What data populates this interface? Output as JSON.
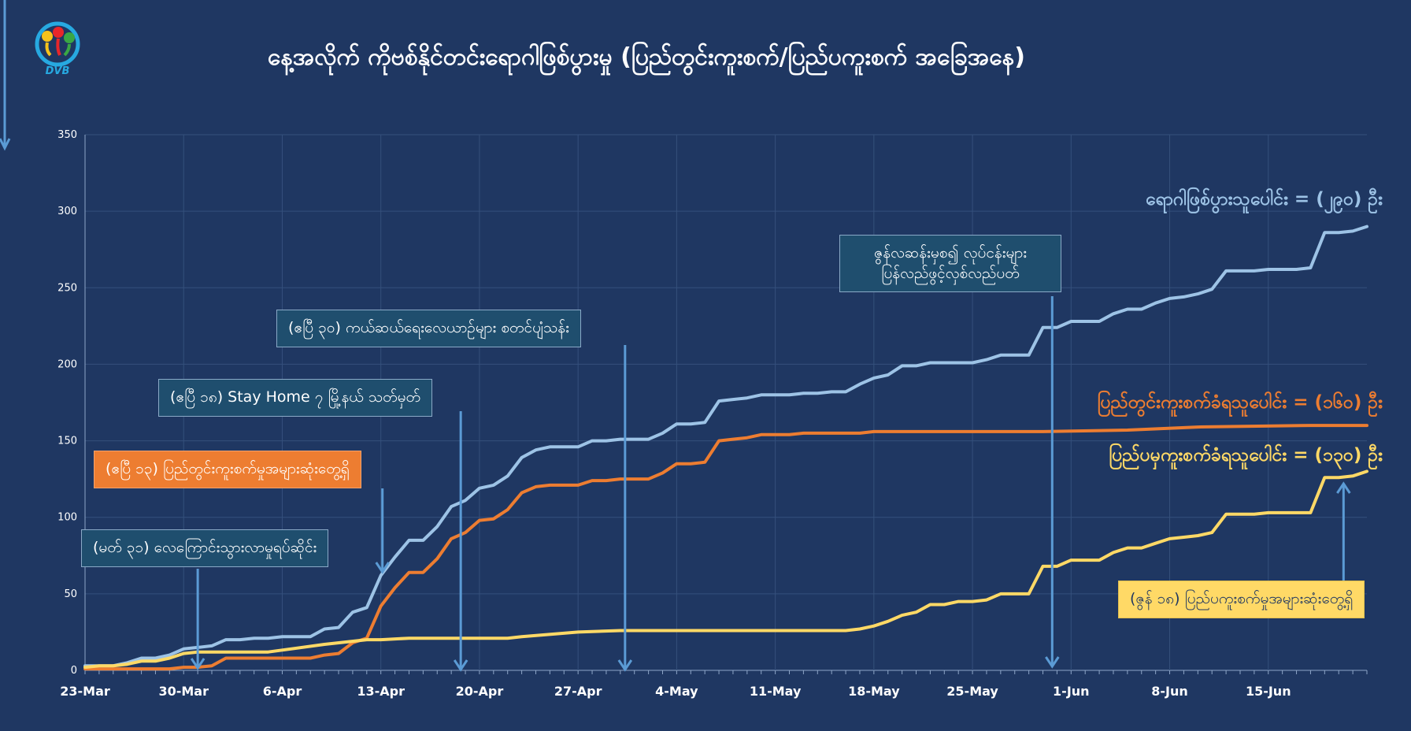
{
  "title": "နေ့အလိုက် ကိုဗစ်နိုင်တင်းရောဂါဖြစ်ပွားမှု (ပြည်တွင်းကူးစက်/ပြည်ပကူးစက် အခြေအနေ)",
  "logo_text": "DVB",
  "colors": {
    "background": "#1f3762",
    "total": "#9dc3e6",
    "local": "#ed7d31",
    "imported": "#ffd966",
    "grid": "#35507c",
    "axis_text": "#ffffff"
  },
  "callouts": {
    "c1": "(မတ် ၃၁) လေကြောင်းသွားလာမှုရပ်ဆိုင်း",
    "c2": "(ဧပြီ ၁၃) ပြည်တွင်းကူးစက်မှုအများဆုံးတွေ့ရှိ",
    "c3": "(ဧပြီ ၁၈) Stay Home ၇ မြို့နယ် သတ်မှတ်",
    "c4": "(ဧပြီ ၃၀) ကယ်ဆယ်ရေးလေယာဥ်များ စတင်ပျံသန်း",
    "c5_line1": "ဇွန်လဆန်းမှစ၍ လုပ်ငန်းများ",
    "c5_line2": "ပြန်လည်ဖွင့်လှစ်လည်ပတ်",
    "c6": "(ဇွန် ၁၈) ပြည်ပကူးစက်မှုအများဆုံးတွေ့ရှိ"
  },
  "chart_data": {
    "type": "line",
    "title": "နေ့အလိုက် ကိုဗစ်နိုင်တင်းရောဂါဖြစ်ပွားမှု (ပြည်တွင်းကူးစက်/ပြည်ပကူးစက် အခြေအနေ)",
    "xlabel": "",
    "ylabel": "",
    "ylim": [
      0,
      350
    ],
    "yticks": [
      0,
      50,
      100,
      150,
      200,
      250,
      300,
      350
    ],
    "x_start": "23-Mar",
    "x_end": "22-Jun",
    "x_tick_labels": [
      "23-Mar",
      "30-Mar",
      "6-Apr",
      "13-Apr",
      "20-Apr",
      "27-Apr",
      "4-May",
      "11-May",
      "18-May",
      "25-May",
      "1-Jun",
      "8-Jun",
      "15-Jun"
    ],
    "grid": true,
    "legend": "none",
    "series": [
      {
        "name": "ရောဂါဖြစ်ပွားသူပေါင်း = (၂၉၀) ဦး",
        "key": "total",
        "points": [
          [
            "23-Mar",
            3
          ],
          [
            "24-Mar",
            3
          ],
          [
            "25-Mar",
            3
          ],
          [
            "26-Mar",
            5
          ],
          [
            "27-Mar",
            8
          ],
          [
            "28-Mar",
            8
          ],
          [
            "29-Mar",
            10
          ],
          [
            "30-Mar",
            14
          ],
          [
            "31-Mar",
            15
          ],
          [
            "1-Apr",
            16
          ],
          [
            "2-Apr",
            20
          ],
          [
            "3-Apr",
            20
          ],
          [
            "4-Apr",
            21
          ],
          [
            "5-Apr",
            21
          ],
          [
            "6-Apr",
            22
          ],
          [
            "7-Apr",
            22
          ],
          [
            "8-Apr",
            22
          ],
          [
            "9-Apr",
            27
          ],
          [
            "10-Apr",
            28
          ],
          [
            "11-Apr",
            38
          ],
          [
            "12-Apr",
            41
          ],
          [
            "13-Apr",
            62
          ],
          [
            "14-Apr",
            74
          ],
          [
            "15-Apr",
            85
          ],
          [
            "16-Apr",
            85
          ],
          [
            "17-Apr",
            94
          ],
          [
            "18-Apr",
            107
          ],
          [
            "19-Apr",
            111
          ],
          [
            "20-Apr",
            119
          ],
          [
            "21-Apr",
            121
          ],
          [
            "22-Apr",
            127
          ],
          [
            "23-Apr",
            139
          ],
          [
            "24-Apr",
            144
          ],
          [
            "25-Apr",
            146
          ],
          [
            "26-Apr",
            146
          ],
          [
            "27-Apr",
            146
          ],
          [
            "28-Apr",
            150
          ],
          [
            "29-Apr",
            150
          ],
          [
            "30-Apr",
            151
          ],
          [
            "1-May",
            151
          ],
          [
            "2-May",
            151
          ],
          [
            "3-May",
            155
          ],
          [
            "4-May",
            161
          ],
          [
            "5-May",
            161
          ],
          [
            "6-May",
            162
          ],
          [
            "7-May",
            176
          ],
          [
            "8-May",
            177
          ],
          [
            "9-May",
            178
          ],
          [
            "10-May",
            180
          ],
          [
            "11-May",
            180
          ],
          [
            "12-May",
            180
          ],
          [
            "13-May",
            181
          ],
          [
            "14-May",
            181
          ],
          [
            "15-May",
            182
          ],
          [
            "16-May",
            182
          ],
          [
            "17-May",
            187
          ],
          [
            "18-May",
            191
          ],
          [
            "19-May",
            193
          ],
          [
            "20-May",
            199
          ],
          [
            "21-May",
            199
          ],
          [
            "22-May",
            201
          ],
          [
            "23-May",
            201
          ],
          [
            "24-May",
            201
          ],
          [
            "25-May",
            201
          ],
          [
            "26-May",
            203
          ],
          [
            "27-May",
            206
          ],
          [
            "28-May",
            206
          ],
          [
            "29-May",
            206
          ],
          [
            "30-May",
            224
          ],
          [
            "31-May",
            224
          ],
          [
            "1-Jun",
            228
          ],
          [
            "2-Jun",
            228
          ],
          [
            "3-Jun",
            228
          ],
          [
            "4-Jun",
            233
          ],
          [
            "5-Jun",
            236
          ],
          [
            "6-Jun",
            236
          ],
          [
            "7-Jun",
            240
          ],
          [
            "8-Jun",
            243
          ],
          [
            "9-Jun",
            244
          ],
          [
            "10-Jun",
            246
          ],
          [
            "11-Jun",
            249
          ],
          [
            "12-Jun",
            261
          ],
          [
            "13-Jun",
            261
          ],
          [
            "14-Jun",
            261
          ],
          [
            "15-Jun",
            262
          ],
          [
            "16-Jun",
            262
          ],
          [
            "17-Jun",
            262
          ],
          [
            "18-Jun",
            263
          ],
          [
            "19-Jun",
            286
          ],
          [
            "20-Jun",
            286
          ],
          [
            "21-Jun",
            287
          ],
          [
            "22-Jun",
            290
          ]
        ]
      },
      {
        "name": "ပြည်တွင်းကူးစက်ခံရသူပေါင်း = (၁၆၀) ဦး",
        "key": "local",
        "points": [
          [
            "23-Mar",
            1
          ],
          [
            "27-Mar",
            1
          ],
          [
            "29-Mar",
            1
          ],
          [
            "30-Mar",
            2
          ],
          [
            "31-Mar",
            2
          ],
          [
            "1-Apr",
            3
          ],
          [
            "2-Apr",
            8
          ],
          [
            "3-Apr",
            8
          ],
          [
            "6-Apr",
            8
          ],
          [
            "8-Apr",
            8
          ],
          [
            "9-Apr",
            10
          ],
          [
            "10-Apr",
            11
          ],
          [
            "11-Apr",
            18
          ],
          [
            "12-Apr",
            21
          ],
          [
            "13-Apr",
            42
          ],
          [
            "14-Apr",
            54
          ],
          [
            "15-Apr",
            64
          ],
          [
            "16-Apr",
            64
          ],
          [
            "17-Apr",
            73
          ],
          [
            "18-Apr",
            86
          ],
          [
            "19-Apr",
            90
          ],
          [
            "20-Apr",
            98
          ],
          [
            "21-Apr",
            99
          ],
          [
            "22-Apr",
            105
          ],
          [
            "23-Apr",
            116
          ],
          [
            "24-Apr",
            120
          ],
          [
            "25-Apr",
            121
          ],
          [
            "26-Apr",
            121
          ],
          [
            "27-Apr",
            121
          ],
          [
            "28-Apr",
            124
          ],
          [
            "29-Apr",
            124
          ],
          [
            "30-Apr",
            125
          ],
          [
            "2-May",
            125
          ],
          [
            "3-May",
            129
          ],
          [
            "4-May",
            135
          ],
          [
            "5-May",
            135
          ],
          [
            "6-May",
            136
          ],
          [
            "7-May",
            150
          ],
          [
            "8-May",
            151
          ],
          [
            "9-May",
            152
          ],
          [
            "10-May",
            154
          ],
          [
            "12-May",
            154
          ],
          [
            "13-May",
            155
          ],
          [
            "17-May",
            155
          ],
          [
            "18-May",
            156
          ],
          [
            "30-May",
            156
          ],
          [
            "5-Jun",
            157
          ],
          [
            "10-Jun",
            159
          ],
          [
            "18-Jun",
            160
          ],
          [
            "22-Jun",
            160
          ]
        ]
      },
      {
        "name": "ပြည်ပမှကူးစက်ခံရသူပေါင်း = (၁၃၀) ဦး",
        "key": "imported",
        "points": [
          [
            "23-Mar",
            2
          ],
          [
            "24-Mar",
            3
          ],
          [
            "25-Mar",
            3
          ],
          [
            "26-Mar",
            4
          ],
          [
            "27-Mar",
            6
          ],
          [
            "28-Mar",
            6
          ],
          [
            "29-Mar",
            8
          ],
          [
            "30-Mar",
            11
          ],
          [
            "31-Mar",
            12
          ],
          [
            "2-Apr",
            12
          ],
          [
            "3-Apr",
            12
          ],
          [
            "5-Apr",
            12
          ],
          [
            "9-Apr",
            17
          ],
          [
            "12-Apr",
            20
          ],
          [
            "13-Apr",
            20
          ],
          [
            "15-Apr",
            21
          ],
          [
            "22-Apr",
            21
          ],
          [
            "23-Apr",
            22
          ],
          [
            "27-Apr",
            25
          ],
          [
            "30-Apr",
            26
          ],
          [
            "16-May",
            26
          ],
          [
            "17-May",
            27
          ],
          [
            "18-May",
            29
          ],
          [
            "19-May",
            32
          ],
          [
            "20-May",
            36
          ],
          [
            "21-May",
            38
          ],
          [
            "22-May",
            43
          ],
          [
            "23-May",
            43
          ],
          [
            "24-May",
            45
          ],
          [
            "25-May",
            45
          ],
          [
            "26-May",
            46
          ],
          [
            "27-May",
            50
          ],
          [
            "28-May",
            50
          ],
          [
            "29-May",
            50
          ],
          [
            "30-May",
            68
          ],
          [
            "31-May",
            68
          ],
          [
            "1-Jun",
            72
          ],
          [
            "3-Jun",
            72
          ],
          [
            "4-Jun",
            77
          ],
          [
            "5-Jun",
            80
          ],
          [
            "6-Jun",
            80
          ],
          [
            "7-Jun",
            83
          ],
          [
            "8-Jun",
            86
          ],
          [
            "9-Jun",
            87
          ],
          [
            "10-Jun",
            88
          ],
          [
            "11-Jun",
            90
          ],
          [
            "12-Jun",
            102
          ],
          [
            "14-Jun",
            102
          ],
          [
            "15-Jun",
            103
          ],
          [
            "18-Jun",
            103
          ],
          [
            "19-Jun",
            126
          ],
          [
            "20-Jun",
            126
          ],
          [
            "21-Jun",
            127
          ],
          [
            "22-Jun",
            130
          ]
        ]
      }
    ]
  }
}
